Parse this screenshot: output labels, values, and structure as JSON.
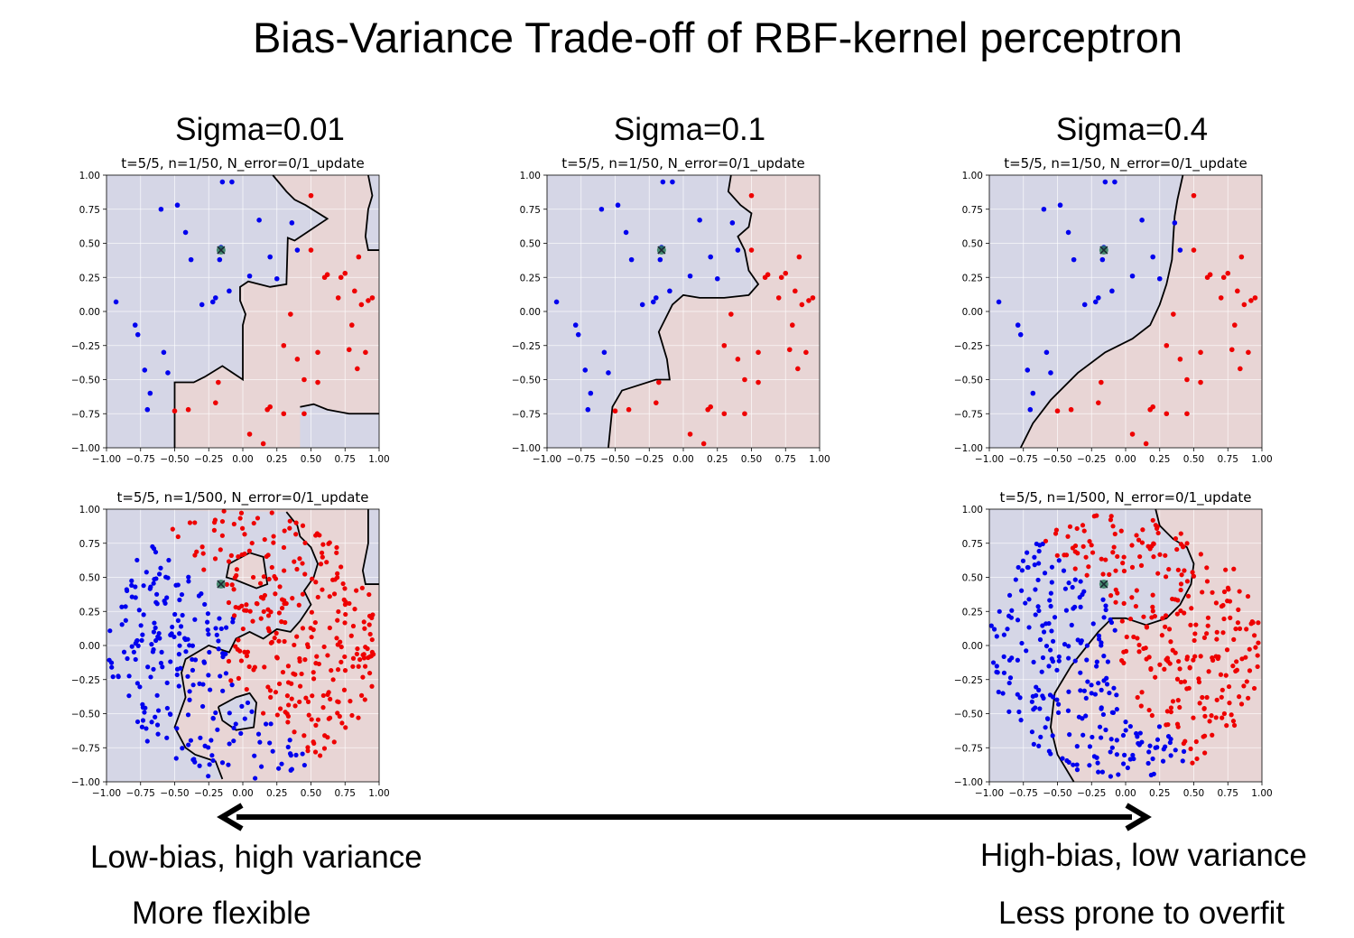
{
  "slide": {
    "title": "Bias-Variance Trade-off of RBF-kernel perceptron",
    "column_titles": [
      "Sigma=0.01",
      "Sigma=0.1",
      "Sigma=0.4"
    ],
    "left_caption_1": "Low-bias, high variance",
    "left_caption_2": "More flexible",
    "right_caption_1": "High-bias, low variance",
    "right_caption_2": "Less prone to overfit"
  },
  "colors": {
    "class_pos": "#0000ee",
    "class_neg": "#ee0000",
    "region_pos": "#d5d6e6",
    "region_neg": "#e8d5d5",
    "highlight": "#2e7d5b"
  },
  "chart_data": [
    {
      "id": "sigma001_n50",
      "type": "scatter",
      "sigma": 0.01,
      "title": "t=5/5, n=1/50, N_error=0/1_update",
      "xlim": [
        -1,
        1
      ],
      "ylim": [
        -1,
        1
      ],
      "xticks": [
        "−1.00",
        "−0.75",
        "−0.50",
        "−0.25",
        "0.00",
        "0.25",
        "0.50",
        "0.75",
        "1.00"
      ],
      "yticks": [
        "1.00",
        "0.75",
        "0.50",
        "0.25",
        "0.00",
        "−0.25",
        "−0.50",
        "−0.75",
        "−1.00"
      ],
      "grid": true,
      "boundary": [
        [
          0.22,
          1
        ],
        [
          0.32,
          0.88
        ],
        [
          0.38,
          0.82
        ],
        [
          0.46,
          0.78
        ],
        [
          0.62,
          0.68
        ],
        [
          0.38,
          0.52
        ],
        [
          0.33,
          0.54
        ],
        [
          0.32,
          0.2
        ],
        [
          0.2,
          0.18
        ],
        [
          0.04,
          0.22
        ],
        [
          -0.02,
          0.18
        ],
        [
          -0.02,
          0.08
        ],
        [
          0.02,
          -0.02
        ],
        [
          0,
          -0.1
        ],
        [
          0,
          -0.5
        ],
        [
          -0.15,
          -0.4
        ],
        [
          -0.28,
          -0.48
        ],
        [
          -0.36,
          -0.52
        ],
        [
          -0.5,
          -0.52
        ],
        [
          -0.5,
          -1
        ]
      ],
      "boundary2": [
        [
          0.42,
          -0.7
        ],
        [
          0.52,
          -0.68
        ],
        [
          0.62,
          -0.72
        ],
        [
          0.78,
          -0.75
        ],
        [
          1,
          -0.75
        ]
      ],
      "boundary3": [
        [
          1,
          0.45
        ],
        [
          0.92,
          0.45
        ],
        [
          0.9,
          0.55
        ],
        [
          0.92,
          0.75
        ],
        [
          0.95,
          0.85
        ],
        [
          0.92,
          1
        ]
      ],
      "series": [
        {
          "class": "pos",
          "x": [
            -0.93,
            -0.79,
            -0.77,
            -0.68,
            -0.6,
            -0.55,
            -0.48,
            -0.42,
            -0.38,
            -0.3,
            -0.22,
            -0.2,
            -0.17,
            -0.1,
            -0.08,
            0.12,
            0.2,
            0.25,
            0.36,
            0.4,
            0.05,
            -0.15,
            -0.16,
            -0.58,
            -0.72,
            -0.7
          ],
          "y": [
            0.07,
            -0.1,
            -0.17,
            -0.6,
            0.75,
            -0.45,
            0.78,
            0.58,
            0.38,
            0.05,
            0.07,
            0.1,
            0.38,
            0.15,
            0.95,
            0.67,
            0.4,
            0.24,
            0.65,
            0.45,
            0.26,
            0.95,
            0.47,
            -0.3,
            -0.43,
            -0.72
          ]
        },
        {
          "class": "neg",
          "x": [
            0.5,
            0.5,
            0.35,
            0.3,
            0.55,
            0.45,
            0.6,
            0.62,
            0.7,
            0.72,
            0.75,
            0.82,
            0.85,
            0.87,
            0.9,
            0.92,
            0.78,
            0.8,
            0.84,
            0.95,
            0.4,
            0.45,
            0.55,
            0.3,
            0.18,
            -0.5,
            -0.4,
            -0.2,
            -0.18,
            0.05,
            0.15,
            0.2
          ],
          "y": [
            0.85,
            0.45,
            -0.02,
            -0.25,
            -0.3,
            -0.5,
            0.25,
            0.27,
            0.1,
            0.25,
            0.28,
            0.15,
            0.4,
            0.05,
            -0.3,
            0.08,
            -0.28,
            -0.1,
            -0.42,
            0.1,
            -0.35,
            -0.75,
            -0.52,
            -0.75,
            -0.72,
            -0.73,
            -0.72,
            -0.67,
            -0.52,
            -0.9,
            -0.97,
            -0.7
          ]
        }
      ]
    },
    {
      "id": "sigma01_n50",
      "type": "scatter",
      "sigma": 0.1,
      "title": "t=5/5, n=1/50, N_error=0/1_update",
      "xlim": [
        -1,
        1
      ],
      "ylim": [
        -1,
        1
      ],
      "xticks": [
        "−1.00",
        "−0.75",
        "−0.50",
        "−0.25",
        "0.00",
        "0.25",
        "0.50",
        "0.75",
        "1.00"
      ],
      "yticks": [
        "1.00",
        "0.75",
        "0.50",
        "0.25",
        "0.00",
        "−0.25",
        "−0.50",
        "−0.75",
        "−1.00"
      ],
      "grid": true,
      "boundary": [
        [
          0.35,
          1
        ],
        [
          0.33,
          0.88
        ],
        [
          0.42,
          0.78
        ],
        [
          0.5,
          0.72
        ],
        [
          0.48,
          0.62
        ],
        [
          0.4,
          0.55
        ],
        [
          0.45,
          0.45
        ],
        [
          0.48,
          0.3
        ],
        [
          0.55,
          0.2
        ],
        [
          0.48,
          0.12
        ],
        [
          0.3,
          0.1
        ],
        [
          0.12,
          0.1
        ],
        [
          0,
          0.12
        ],
        [
          -0.08,
          0.05
        ],
        [
          -0.18,
          -0.15
        ],
        [
          -0.15,
          -0.25
        ],
        [
          -0.12,
          -0.35
        ],
        [
          -0.1,
          -0.5
        ],
        [
          -0.2,
          -0.5
        ],
        [
          -0.45,
          -0.58
        ],
        [
          -0.52,
          -0.7
        ],
        [
          -0.55,
          -1
        ]
      ],
      "series": [
        {
          "class": "pos",
          "x": [
            -0.93,
            -0.79,
            -0.77,
            -0.68,
            -0.6,
            -0.55,
            -0.48,
            -0.42,
            -0.38,
            -0.3,
            -0.22,
            -0.2,
            -0.17,
            -0.1,
            -0.08,
            0.12,
            0.2,
            0.25,
            0.36,
            0.4,
            0.05,
            -0.15,
            -0.16,
            -0.58,
            -0.72,
            -0.7
          ],
          "y": [
            0.07,
            -0.1,
            -0.17,
            -0.6,
            0.75,
            -0.45,
            0.78,
            0.58,
            0.38,
            0.05,
            0.07,
            0.1,
            0.38,
            0.15,
            0.95,
            0.67,
            0.4,
            0.24,
            0.65,
            0.45,
            0.26,
            0.95,
            0.47,
            -0.3,
            -0.43,
            -0.72
          ]
        },
        {
          "class": "neg",
          "x": [
            0.5,
            0.5,
            0.35,
            0.3,
            0.55,
            0.45,
            0.6,
            0.62,
            0.7,
            0.72,
            0.75,
            0.82,
            0.85,
            0.87,
            0.9,
            0.92,
            0.78,
            0.8,
            0.84,
            0.95,
            0.4,
            0.45,
            0.55,
            0.3,
            0.18,
            -0.5,
            -0.4,
            -0.2,
            -0.18,
            0.05,
            0.15,
            0.2
          ],
          "y": [
            0.85,
            0.45,
            -0.02,
            -0.25,
            -0.3,
            -0.5,
            0.25,
            0.27,
            0.1,
            0.25,
            0.28,
            0.15,
            0.4,
            0.05,
            -0.3,
            0.08,
            -0.28,
            -0.1,
            -0.42,
            0.1,
            -0.35,
            -0.75,
            -0.52,
            -0.75,
            -0.72,
            -0.73,
            -0.72,
            -0.67,
            -0.52,
            -0.9,
            -0.97,
            -0.7
          ]
        }
      ]
    },
    {
      "id": "sigma04_n50",
      "type": "scatter",
      "sigma": 0.4,
      "title": "t=5/5, n=1/50, N_error=0/1_update",
      "xlim": [
        -1,
        1
      ],
      "ylim": [
        -1,
        1
      ],
      "xticks": [
        "−1.00",
        "−0.75",
        "−0.50",
        "−0.25",
        "0.00",
        "0.25",
        "0.50",
        "0.75",
        "1.00"
      ],
      "yticks": [
        "1.00",
        "0.75",
        "0.50",
        "0.25",
        "0.00",
        "−0.25",
        "−0.50",
        "−0.75",
        "−1.00"
      ],
      "grid": true,
      "boundary": [
        [
          0.42,
          1
        ],
        [
          0.38,
          0.82
        ],
        [
          0.36,
          0.7
        ],
        [
          0.35,
          0.55
        ],
        [
          0.34,
          0.38
        ],
        [
          0.3,
          0.2
        ],
        [
          0.25,
          0.05
        ],
        [
          0.18,
          -0.1
        ],
        [
          0.05,
          -0.2
        ],
        [
          -0.15,
          -0.3
        ],
        [
          -0.35,
          -0.45
        ],
        [
          -0.55,
          -0.65
        ],
        [
          -0.68,
          -0.82
        ],
        [
          -0.77,
          -1
        ]
      ],
      "series": [
        {
          "class": "pos",
          "x": [
            -0.93,
            -0.79,
            -0.77,
            -0.68,
            -0.6,
            -0.55,
            -0.48,
            -0.42,
            -0.38,
            -0.3,
            -0.22,
            -0.2,
            -0.17,
            -0.1,
            -0.08,
            0.12,
            0.2,
            0.25,
            0.36,
            0.4,
            0.05,
            -0.15,
            -0.16,
            -0.58,
            -0.72,
            -0.7
          ],
          "y": [
            0.07,
            -0.1,
            -0.17,
            -0.6,
            0.75,
            -0.45,
            0.78,
            0.58,
            0.38,
            0.05,
            0.07,
            0.1,
            0.38,
            0.15,
            0.95,
            0.67,
            0.4,
            0.24,
            0.65,
            0.45,
            0.26,
            0.95,
            0.47,
            -0.3,
            -0.43,
            -0.72
          ]
        },
        {
          "class": "neg",
          "x": [
            0.5,
            0.5,
            0.35,
            0.3,
            0.55,
            0.45,
            0.6,
            0.62,
            0.7,
            0.72,
            0.75,
            0.82,
            0.85,
            0.87,
            0.9,
            0.92,
            0.78,
            0.8,
            0.84,
            0.95,
            0.4,
            0.45,
            0.55,
            0.3,
            0.18,
            -0.5,
            -0.4,
            -0.2,
            -0.18,
            0.05,
            0.15,
            0.2
          ],
          "y": [
            0.85,
            0.45,
            -0.02,
            -0.25,
            -0.3,
            -0.5,
            0.25,
            0.27,
            0.1,
            0.25,
            0.28,
            0.15,
            0.4,
            0.05,
            -0.3,
            0.08,
            -0.28,
            -0.1,
            -0.42,
            0.1,
            -0.35,
            -0.75,
            -0.52,
            -0.75,
            -0.72,
            -0.73,
            -0.72,
            -0.67,
            -0.52,
            -0.9,
            -0.97,
            -0.7
          ]
        }
      ]
    },
    {
      "id": "sigma001_n500",
      "type": "scatter",
      "sigma": 0.01,
      "title": "t=5/5, n=1/500, N_error=0/1_update",
      "xlim": [
        -1,
        1
      ],
      "ylim": [
        -1,
        1
      ],
      "xticks": [
        "−1.00",
        "−0.75",
        "−0.50",
        "−0.25",
        "0.00",
        "0.25",
        "0.50",
        "0.75",
        "1.00"
      ],
      "yticks": [
        "1.00",
        "0.75",
        "0.50",
        "0.25",
        "0.00",
        "−0.25",
        "−0.50",
        "−0.75",
        "−1.00"
      ],
      "grid": true,
      "boundary": [
        [
          0.32,
          0.98
        ],
        [
          0.4,
          0.88
        ],
        [
          0.42,
          0.8
        ],
        [
          0.5,
          0.72
        ],
        [
          0.55,
          0.6
        ],
        [
          0.52,
          0.5
        ],
        [
          0.45,
          0.4
        ],
        [
          0.5,
          0.3
        ],
        [
          0.42,
          0.18
        ],
        [
          0.35,
          0.1
        ],
        [
          0.25,
          0.12
        ],
        [
          0.15,
          0.05
        ],
        [
          0.05,
          0.1
        ],
        [
          -0.05,
          0.05
        ],
        [
          -0.1,
          -0.05
        ],
        [
          -0.25,
          0
        ],
        [
          -0.42,
          -0.1
        ],
        [
          -0.45,
          -0.2
        ],
        [
          -0.42,
          -0.38
        ],
        [
          -0.5,
          -0.6
        ],
        [
          -0.42,
          -0.75
        ],
        [
          -0.35,
          -0.8
        ],
        [
          -0.2,
          -0.85
        ],
        [
          -0.15,
          -0.98
        ]
      ],
      "boundary2": [
        [
          -0.1,
          0.6
        ],
        [
          0.05,
          0.68
        ],
        [
          0.15,
          0.65
        ],
        [
          0.18,
          0.45
        ],
        [
          0.1,
          0.42
        ],
        [
          -0.05,
          0.48
        ],
        [
          -0.12,
          0.5
        ],
        [
          -0.1,
          0.6
        ]
      ],
      "boundary3": [
        [
          -0.18,
          -0.45
        ],
        [
          -0.05,
          -0.38
        ],
        [
          0.05,
          -0.35
        ],
        [
          0.1,
          -0.42
        ],
        [
          0.08,
          -0.6
        ],
        [
          -0.05,
          -0.62
        ],
        [
          -0.15,
          -0.55
        ],
        [
          -0.18,
          -0.45
        ]
      ],
      "boundary4": [
        [
          1,
          0.45
        ],
        [
          0.9,
          0.45
        ],
        [
          0.88,
          0.55
        ],
        [
          0.92,
          0.75
        ],
        [
          0.92,
          1
        ]
      ],
      "n_points": 500,
      "series": [
        {
          "class": "pos",
          "description_region": "upper-left half of unit disc"
        },
        {
          "class": "neg",
          "description_region": "lower-right half of unit disc"
        }
      ]
    },
    {
      "id": "sigma04_n500",
      "type": "scatter",
      "sigma": 0.4,
      "title": "t=5/5, n=1/500, N_error=0/1_update",
      "xlim": [
        -1,
        1
      ],
      "ylim": [
        -1,
        1
      ],
      "xticks": [
        "−1.00",
        "−0.75",
        "−0.50",
        "−0.25",
        "0.00",
        "0.25",
        "0.50",
        "0.75",
        "1.00"
      ],
      "yticks": [
        "1.00",
        "0.75",
        "0.50",
        "0.25",
        "0.00",
        "−0.25",
        "−0.50",
        "−0.75",
        "−1.00"
      ],
      "grid": true,
      "boundary": [
        [
          0.22,
          1
        ],
        [
          0.25,
          0.88
        ],
        [
          0.35,
          0.78
        ],
        [
          0.45,
          0.72
        ],
        [
          0.5,
          0.6
        ],
        [
          0.48,
          0.45
        ],
        [
          0.4,
          0.3
        ],
        [
          0.3,
          0.2
        ],
        [
          0.15,
          0.15
        ],
        [
          0,
          0.2
        ],
        [
          -0.1,
          0.2
        ],
        [
          -0.2,
          0.1
        ],
        [
          -0.4,
          -0.15
        ],
        [
          -0.52,
          -0.35
        ],
        [
          -0.55,
          -0.6
        ],
        [
          -0.5,
          -0.8
        ],
        [
          -0.38,
          -1
        ]
      ],
      "n_points": 500,
      "series": [
        {
          "class": "pos",
          "description_region": "upper-left half of unit disc"
        },
        {
          "class": "neg",
          "description_region": "lower-right half of unit disc"
        }
      ]
    }
  ]
}
